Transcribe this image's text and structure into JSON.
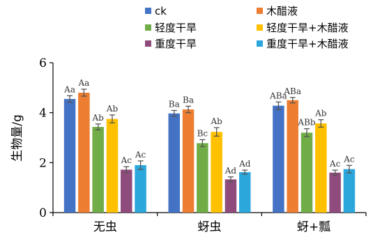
{
  "chart_data": {
    "type": "bar",
    "title": "",
    "xlabel": "",
    "ylabel": "生物量/g",
    "ylim": [
      0,
      6
    ],
    "yticks": [
      0,
      2,
      4,
      6
    ],
    "grid": false,
    "legend_position": "top",
    "categories": [
      "无虫",
      "蚜虫",
      "蚜+瓢"
    ],
    "series": [
      {
        "name": "ck",
        "color": "#4472C4",
        "values": [
          4.55,
          3.97,
          4.28
        ],
        "errors": [
          0.13,
          0.12,
          0.15
        ],
        "labels": [
          "Aa",
          "Ba",
          "ABa"
        ]
      },
      {
        "name": "木醋液",
        "color": "#ED7D31",
        "values": [
          4.8,
          4.13,
          4.5
        ],
        "errors": [
          0.14,
          0.13,
          0.11
        ],
        "labels": [
          "Aa",
          "Ba",
          "ABa"
        ]
      },
      {
        "name": "轻度干旱",
        "color": "#70AD47",
        "values": [
          3.43,
          2.78,
          3.2
        ],
        "errors": [
          0.12,
          0.14,
          0.16
        ],
        "labels": [
          "Ab",
          "Bc",
          "ABb"
        ]
      },
      {
        "name": "轻度干旱+木醋液",
        "color": "#FFC000",
        "values": [
          3.75,
          3.23,
          3.57
        ],
        "errors": [
          0.16,
          0.17,
          0.15
        ],
        "labels": [
          "Ab",
          "Ab",
          "Ab"
        ]
      },
      {
        "name": "重度干旱",
        "color": "#8E4B7C",
        "values": [
          1.72,
          1.33,
          1.6
        ],
        "errors": [
          0.12,
          0.1,
          0.1
        ],
        "labels": [
          "Ac",
          "Ad",
          "Ac"
        ]
      },
      {
        "name": "重度干旱+木醋液",
        "color": "#2CA7DC",
        "values": [
          1.9,
          1.62,
          1.74
        ],
        "errors": [
          0.17,
          0.08,
          0.15
        ],
        "labels": [
          "Ac",
          "Ad",
          "Ac"
        ]
      }
    ]
  }
}
